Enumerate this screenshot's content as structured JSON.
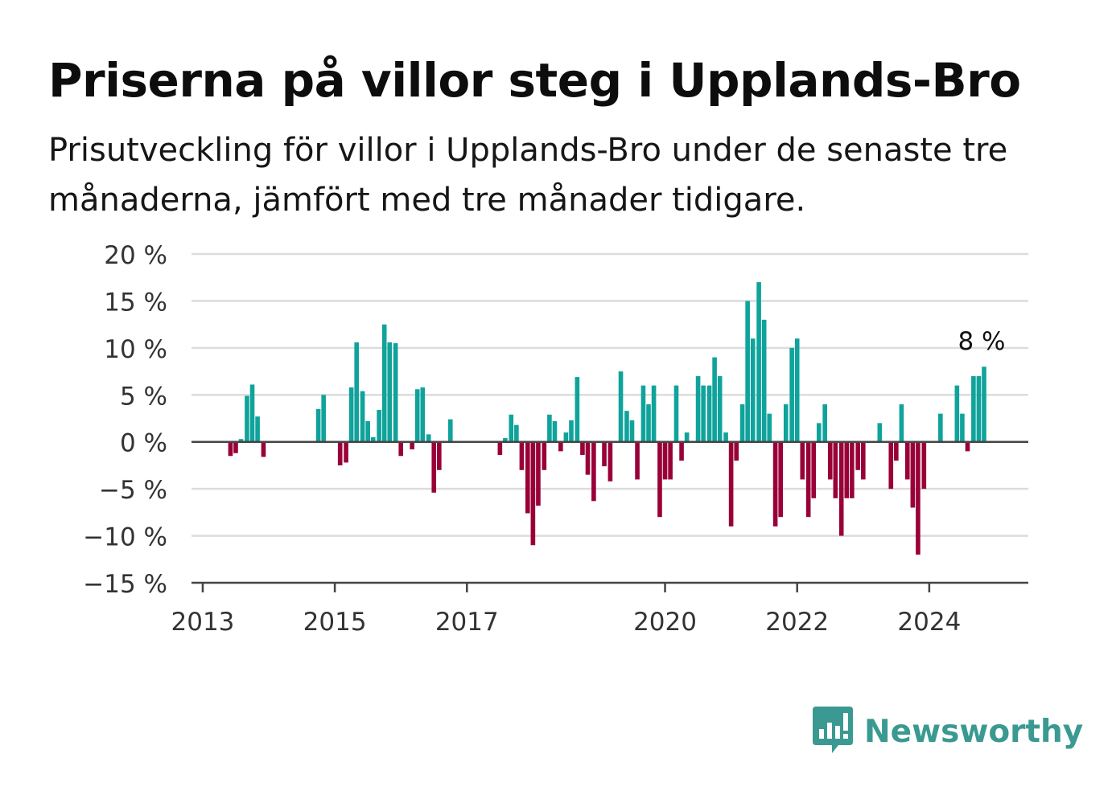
{
  "title": "Priserna på villor steg i Upplands-Bro",
  "subtitle": "Prisutveckling för villor i Upplands-Bro under de senaste tre månaderna, jämfört med tre månader tidigare.",
  "brand": "Newsworthy",
  "colors": {
    "positive": "#0fa39b",
    "negative": "#990038",
    "grid": "#dcdcdc",
    "zero": "#444444",
    "brand": "#3a9a91"
  },
  "chart_data": {
    "type": "bar",
    "ylim": [
      -15,
      20
    ],
    "yticks": [
      -15,
      -10,
      -5,
      0,
      5,
      10,
      15,
      20
    ],
    "ytick_labels": [
      "−15 %",
      "−10 %",
      "−5 %",
      "0 %",
      "5 %",
      "10 %",
      "15 %",
      "20 %"
    ],
    "xlim": [
      2012.83,
      2025.5
    ],
    "xticks": [
      2013,
      2015,
      2017,
      2020,
      2022,
      2024
    ],
    "xtick_labels": [
      "2013",
      "2015",
      "2017",
      "2020",
      "2022",
      "2024"
    ],
    "grid": true,
    "last_value_label": "8 %",
    "series": [
      {
        "x": [
          2013.42,
          2013.5,
          2013.58,
          2013.67,
          2013.75,
          2013.83,
          2013.92,
          2014.75,
          2014.83,
          2015.08,
          2015.17,
          2015.25,
          2015.33,
          2015.42,
          2015.5,
          2015.58,
          2015.67,
          2015.75,
          2015.83,
          2015.92,
          2016.0,
          2016.08,
          2016.17,
          2016.25,
          2016.33,
          2016.42,
          2016.5,
          2016.58,
          2016.67,
          2016.75,
          2016.83,
          2017.5,
          2017.58,
          2017.67,
          2017.75,
          2017.83,
          2017.92,
          2018.0,
          2018.08,
          2018.17,
          2018.25,
          2018.33,
          2018.42,
          2018.5,
          2018.58,
          2018.67,
          2018.75,
          2018.83,
          2018.92,
          2019.0,
          2019.08,
          2019.17,
          2019.25,
          2019.33,
          2019.42,
          2019.5,
          2019.58,
          2019.67,
          2019.75,
          2019.83,
          2019.92,
          2020.0,
          2020.08,
          2020.17,
          2020.25,
          2020.33,
          2020.42,
          2020.5,
          2020.58,
          2020.67,
          2020.75,
          2020.83,
          2020.92,
          2021.0,
          2021.08,
          2021.17,
          2021.25,
          2021.33,
          2021.42,
          2021.5,
          2021.58,
          2021.67,
          2021.75,
          2021.83,
          2021.92,
          2022.0,
          2022.08,
          2022.17,
          2022.25,
          2022.33,
          2022.42,
          2022.5,
          2022.58,
          2022.67,
          2022.75,
          2022.83,
          2022.92,
          2023.0,
          2023.08,
          2023.17,
          2023.25,
          2023.33,
          2023.42,
          2023.5,
          2023.58,
          2023.67,
          2023.75,
          2023.83,
          2023.92,
          2024.0,
          2024.08,
          2024.17,
          2024.25,
          2024.33,
          2024.42,
          2024.5,
          2024.58,
          2024.67,
          2024.75,
          2024.83
        ],
        "y": [
          -1.5,
          -1.2,
          0.3,
          4.9,
          6.1,
          2.7,
          -1.6,
          3.5,
          5.0,
          -2.5,
          -2.2,
          5.8,
          10.6,
          5.4,
          2.2,
          0.5,
          3.4,
          12.5,
          10.6,
          10.5,
          -1.5,
          0,
          -0.8,
          5.6,
          5.8,
          0.8,
          -5.4,
          -3.0,
          0,
          2.4,
          0,
          -1.4,
          0.4,
          2.9,
          1.8,
          -3.0,
          -7.6,
          -11.0,
          -6.8,
          -3.0,
          2.9,
          2.2,
          -1.0,
          1.0,
          2.3,
          6.9,
          -1.4,
          -3.5,
          -6.3,
          0,
          -2.6,
          -4.2,
          0,
          7.5,
          3.3,
          2.3,
          -4.0,
          6.0,
          4.0,
          6.0,
          -8.0,
          -4.0,
          -4.0,
          6.0,
          -2.0,
          1.0,
          0,
          7.0,
          6.0,
          6.0,
          9.0,
          7.0,
          1.0,
          -9.0,
          -2.0,
          4.0,
          15.0,
          11.0,
          17.0,
          13.0,
          3.0,
          -9.0,
          -8.0,
          4.0,
          10.0,
          11.0,
          -4.0,
          -8.0,
          -6.0,
          2.0,
          4.0,
          -4.0,
          -6.0,
          -10.0,
          -6.0,
          -6.0,
          -3.0,
          -4.0,
          0,
          0,
          2.0,
          0,
          -5.0,
          -2.0,
          4.0,
          -4.0,
          -7.0,
          -12.0,
          -5.0,
          0,
          0,
          3.0,
          0,
          0,
          6.0,
          3.0,
          -1.0,
          7.0,
          7.0,
          8.0
        ]
      }
    ]
  }
}
